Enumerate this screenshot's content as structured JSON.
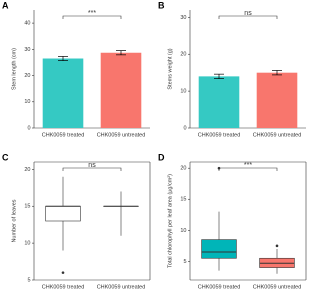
{
  "chart_data": [
    {
      "type": "bar",
      "panel": "A",
      "ylabel": "Stem length (cm)",
      "categories": [
        "CHK0059 treated",
        "CHK0059 untreated"
      ],
      "series": [
        {
          "name": null,
          "colors": [
            "#35c9c3",
            "#f8766d"
          ],
          "values": [
            26.5,
            28.7
          ],
          "errors": [
            0.8,
            0.8
          ]
        }
      ],
      "ylim": [
        0,
        45
      ],
      "yticks": [
        0,
        10,
        20,
        30,
        40
      ],
      "annotation": "***"
    },
    {
      "type": "bar",
      "panel": "B",
      "ylabel": "Stems weight (g)",
      "categories": [
        "CHK0059 treated",
        "CHK0059 untreated"
      ],
      "series": [
        {
          "name": null,
          "colors": [
            "#35c9c3",
            "#f8766d"
          ],
          "values": [
            14,
            15
          ],
          "errors": [
            0.6,
            0.6
          ]
        }
      ],
      "ylim": [
        0,
        32
      ],
      "yticks": [
        0,
        10,
        20,
        30
      ],
      "annotation": "ns"
    },
    {
      "type": "box",
      "panel": "C",
      "ylabel": "Number of leaves",
      "categories": [
        "CHK0059 treated",
        "CHK0059 untreated"
      ],
      "boxes": [
        {
          "color": "#ffffff",
          "min": 9,
          "q1": 13,
          "median": 15,
          "q3": 15,
          "max": 19,
          "outliers": [
            6
          ]
        },
        {
          "color": "#ffffff",
          "min": 11,
          "q1": 15,
          "median": 15,
          "q3": 15,
          "max": 17,
          "outliers": []
        }
      ],
      "ylim": [
        5,
        21
      ],
      "yticks": [
        5,
        10,
        15,
        20
      ],
      "annotation": "ns"
    },
    {
      "type": "box",
      "panel": "D",
      "ylabel": "Total chlorophyll per leaf area (µg/cm²)",
      "categories": [
        "CHK0059 treated",
        "CHK0059 untreated"
      ],
      "boxes": [
        {
          "color": "#00b5b8",
          "min": 3.5,
          "q1": 5.5,
          "median": 6.5,
          "q3": 8.5,
          "max": 13,
          "outliers": [
            20
          ]
        },
        {
          "color": "#f8766d",
          "min": 3,
          "q1": 4,
          "median": 4.7,
          "q3": 5.5,
          "max": 7,
          "outliers": [
            7.5
          ]
        }
      ],
      "ylim": [
        2,
        21
      ],
      "yticks": [
        5,
        10,
        15,
        20
      ],
      "annotation": "***"
    }
  ]
}
